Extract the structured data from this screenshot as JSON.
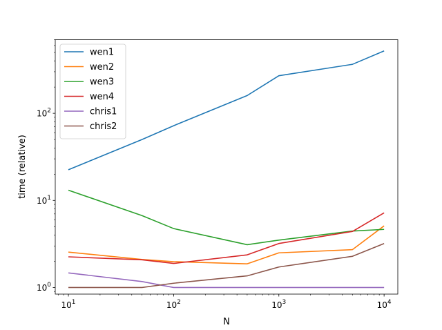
{
  "chart_data": {
    "type": "line",
    "xlabel": "N",
    "ylabel": "time (relative)",
    "xscale": "log",
    "yscale": "log",
    "xlim": [
      7.5,
      13500
    ],
    "ylim": [
      0.84,
      700
    ],
    "grid": false,
    "legend_position": "top-left",
    "x_ticks": [
      {
        "value": 10,
        "base": "10",
        "exp": "1"
      },
      {
        "value": 100,
        "base": "10",
        "exp": "2"
      },
      {
        "value": 1000,
        "base": "10",
        "exp": "3"
      },
      {
        "value": 10000,
        "base": "10",
        "exp": "4"
      }
    ],
    "y_ticks": [
      {
        "value": 1,
        "base": "10",
        "exp": "0"
      },
      {
        "value": 10,
        "base": "10",
        "exp": "1"
      },
      {
        "value": 100,
        "base": "10",
        "exp": "2"
      }
    ],
    "x": [
      10,
      50,
      100,
      500,
      1000,
      5000,
      10000
    ],
    "series": [
      {
        "name": "wen1",
        "color": "#1f77b4",
        "values": [
          22.5,
          50,
          72,
          160,
          270,
          365,
          520
        ]
      },
      {
        "name": "wen2",
        "color": "#ff7f0e",
        "values": [
          2.55,
          2.1,
          1.98,
          1.87,
          2.5,
          2.72,
          5.1
        ]
      },
      {
        "name": "wen3",
        "color": "#2ca02c",
        "values": [
          13.1,
          6.7,
          4.75,
          3.1,
          3.5,
          4.45,
          4.65
        ]
      },
      {
        "name": "wen4",
        "color": "#d62728",
        "values": [
          2.25,
          2.08,
          1.89,
          2.37,
          3.2,
          4.4,
          7.2
        ]
      },
      {
        "name": "chris1",
        "color": "#9467bd",
        "values": [
          1.47,
          1.17,
          1.0,
          1.0,
          1.0,
          1.0,
          1.0
        ]
      },
      {
        "name": "chris2",
        "color": "#8c564b",
        "values": [
          1.0,
          1.0,
          1.12,
          1.36,
          1.72,
          2.28,
          3.2
        ]
      }
    ]
  }
}
